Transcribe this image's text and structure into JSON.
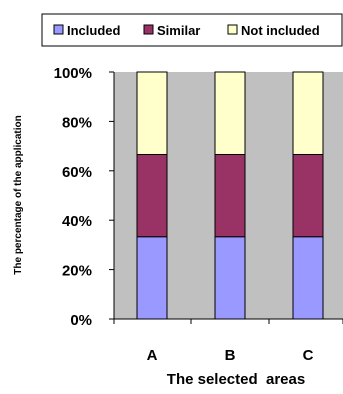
{
  "chart_data": {
    "type": "bar",
    "stacked": true,
    "percent": true,
    "categories": [
      "A",
      "B",
      "C"
    ],
    "series": [
      {
        "name": "Included",
        "values": [
          33.3,
          33.3,
          33.3
        ],
        "color": "#9999ff"
      },
      {
        "name": "Similar",
        "values": [
          33.3,
          33.3,
          33.3
        ],
        "color": "#993366"
      },
      {
        "name": "Not included",
        "values": [
          33.4,
          33.4,
          33.4
        ],
        "color": "#ffffcc"
      }
    ],
    "xlabel": "The selected  areas",
    "ylabel": "The percentage of the application",
    "ylim": [
      0,
      100
    ],
    "yticks": [
      "0%",
      "20%",
      "40%",
      "60%",
      "80%",
      "100%"
    ],
    "legend_position": "top",
    "plot_background": "#c0c0c0",
    "grid": false
  }
}
